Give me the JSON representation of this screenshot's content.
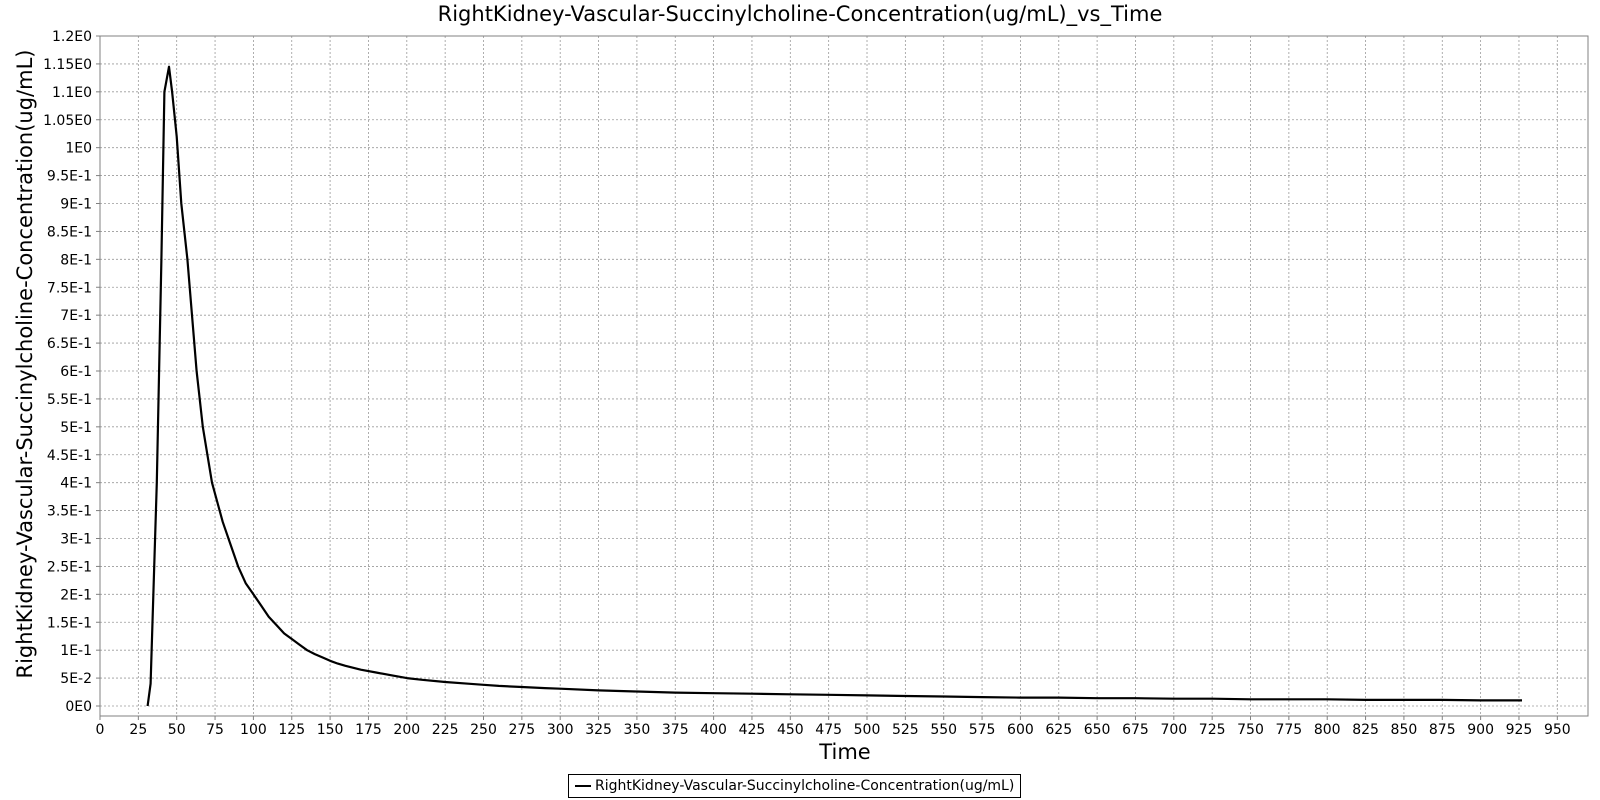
{
  "chart_data": {
    "type": "line",
    "title": "RightKidney-Vascular-Succinylcholine-Concentration(ug/mL)_vs_Time",
    "xlabel": "Time",
    "ylabel": "RightKidney-Vascular-Succinylcholine-Concentration(ug/mL)",
    "xlim": [
      0,
      970
    ],
    "ylim": [
      0,
      1.2
    ],
    "xticks": [
      0,
      25,
      50,
      75,
      100,
      125,
      150,
      175,
      200,
      225,
      250,
      275,
      300,
      325,
      350,
      375,
      400,
      425,
      450,
      475,
      500,
      525,
      550,
      575,
      600,
      625,
      650,
      675,
      700,
      725,
      750,
      775,
      800,
      825,
      850,
      875,
      900,
      925,
      950
    ],
    "xtick_labels": [
      "0",
      "25",
      "50",
      "75",
      "100",
      "125",
      "150",
      "175",
      "200",
      "225",
      "250",
      "275",
      "300",
      "325",
      "350",
      "375",
      "400",
      "425",
      "450",
      "475",
      "500",
      "525",
      "550",
      "575",
      "600",
      "625",
      "650",
      "675",
      "700",
      "725",
      "750",
      "775",
      "800",
      "825",
      "850",
      "875",
      "900",
      "925",
      "950"
    ],
    "yticks": [
      0,
      0.05,
      0.1,
      0.15,
      0.2,
      0.25,
      0.3,
      0.35,
      0.4,
      0.45,
      0.5,
      0.55,
      0.6,
      0.65,
      0.7,
      0.75,
      0.8,
      0.85,
      0.9,
      0.95,
      1.0,
      1.05,
      1.1,
      1.15,
      1.2
    ],
    "ytick_labels": [
      "0E0",
      "5E-2",
      "1E-1",
      "1.5E-1",
      "2E-1",
      "2.5E-1",
      "3E-1",
      "3.5E-1",
      "4E-1",
      "4.5E-1",
      "5E-1",
      "5.5E-1",
      "6E-1",
      "6.5E-1",
      "7E-1",
      "7.5E-1",
      "8E-1",
      "8.5E-1",
      "9E-1",
      "9.5E-1",
      "1E0",
      "1.05E0",
      "1.1E0",
      "1.15E0",
      "1.2E0"
    ],
    "grid": true,
    "legend_position": "bottom-center",
    "series": [
      {
        "name": "RightKidney-Vascular-Succinylcholine-Concentration(ug/mL)",
        "color": "#000000",
        "x": [
          31,
          33,
          37,
          40,
          42,
          45,
          47,
          50,
          53,
          57,
          60,
          63,
          67,
          70,
          73,
          77,
          80,
          85,
          90,
          95,
          100,
          105,
          110,
          115,
          120,
          125,
          130,
          135,
          140,
          145,
          150,
          155,
          160,
          170,
          180,
          190,
          200,
          210,
          225,
          240,
          250,
          260,
          275,
          290,
          300,
          325,
          350,
          375,
          400,
          425,
          450,
          475,
          500,
          525,
          550,
          575,
          600,
          625,
          650,
          675,
          700,
          725,
          750,
          775,
          800,
          825,
          850,
          875,
          900,
          927
        ],
        "y": [
          0.0,
          0.04,
          0.4,
          0.8,
          1.1,
          1.145,
          1.1,
          1.02,
          0.9,
          0.8,
          0.7,
          0.6,
          0.5,
          0.45,
          0.4,
          0.36,
          0.33,
          0.29,
          0.25,
          0.22,
          0.2,
          0.18,
          0.16,
          0.145,
          0.13,
          0.12,
          0.11,
          0.1,
          0.093,
          0.087,
          0.081,
          0.076,
          0.072,
          0.065,
          0.06,
          0.055,
          0.05,
          0.047,
          0.043,
          0.04,
          0.038,
          0.036,
          0.034,
          0.032,
          0.031,
          0.028,
          0.026,
          0.024,
          0.023,
          0.022,
          0.021,
          0.02,
          0.019,
          0.018,
          0.017,
          0.016,
          0.015,
          0.015,
          0.014,
          0.014,
          0.013,
          0.013,
          0.012,
          0.012,
          0.012,
          0.011,
          0.011,
          0.011,
          0.01,
          0.01
        ]
      }
    ]
  }
}
